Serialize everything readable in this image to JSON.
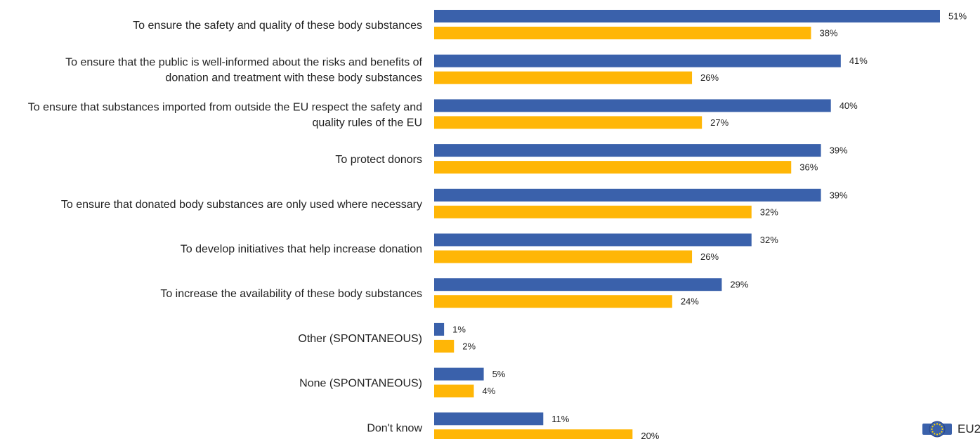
{
  "chart_data": {
    "type": "bar",
    "orientation": "horizontal",
    "grid": false,
    "xlim": [
      0,
      51
    ],
    "categories": [
      [
        "To ensure the safety and quality of these body substances"
      ],
      [
        "To ensure that the public is well-informed about the risks and benefits of",
        "donation and treatment with these body substances"
      ],
      [
        "To ensure that substances imported from outside the EU respect the safety and",
        "quality rules of the EU"
      ],
      [
        "To protect donors"
      ],
      [
        "To ensure that donated body substances are only used where necessary"
      ],
      [
        "To develop initiatives that help increase donation"
      ],
      [
        "To increase the availability of these body substances"
      ],
      [
        "Other (SPONTANEOUS)"
      ],
      [
        "None (SPONTANEOUS)"
      ],
      [
        "Don't know"
      ]
    ],
    "series": [
      {
        "color": "#3a61ab",
        "values": [
          51,
          41,
          40,
          39,
          39,
          32,
          29,
          1,
          5,
          11
        ],
        "labels": [
          "51%",
          "41%",
          "40%",
          "39%",
          "39%",
          "32%",
          "29%",
          "1%",
          "5%",
          "11%"
        ]
      },
      {
        "color": "#ffb606",
        "values": [
          38,
          26,
          27,
          36,
          32,
          26,
          24,
          2,
          4,
          20
        ],
        "labels": [
          "38%",
          "26%",
          "27%",
          "36%",
          "32%",
          "26%",
          "24%",
          "2%",
          "4%",
          "20%"
        ]
      }
    ]
  },
  "legend": {
    "label": "EU2",
    "icon": "eu-flag-icon"
  }
}
